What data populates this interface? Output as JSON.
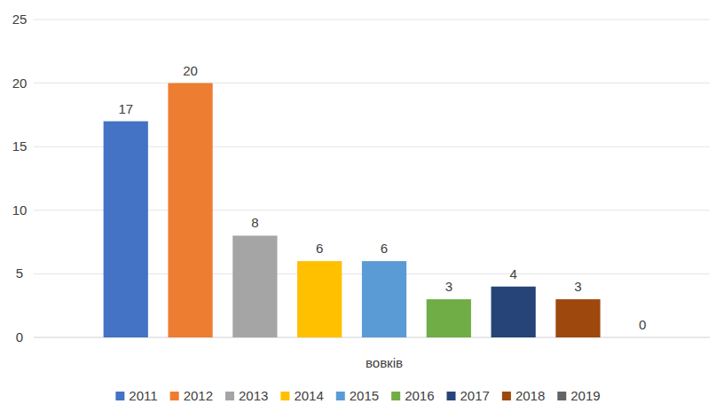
{
  "chart_data": {
    "type": "bar",
    "categories": [
      "вовків"
    ],
    "series": [
      {
        "name": "2011",
        "color": "#4472c4",
        "values": [
          17
        ]
      },
      {
        "name": "2012",
        "color": "#ed7d31",
        "values": [
          20
        ]
      },
      {
        "name": "2013",
        "color": "#a5a5a5",
        "values": [
          8
        ]
      },
      {
        "name": "2014",
        "color": "#ffc000",
        "values": [
          6
        ]
      },
      {
        "name": "2015",
        "color": "#5b9bd5",
        "values": [
          6
        ]
      },
      {
        "name": "2016",
        "color": "#70ad47",
        "values": [
          3
        ]
      },
      {
        "name": "2017",
        "color": "#264478",
        "values": [
          4
        ]
      },
      {
        "name": "2018",
        "color": "#9e480e",
        "values": [
          3
        ]
      },
      {
        "name": "2019",
        "color": "#636363",
        "values": [
          0
        ]
      }
    ],
    "ylim": [
      0,
      25
    ],
    "yticks": [
      0,
      5,
      10,
      15,
      20,
      25
    ],
    "grid": true,
    "data_labels": true,
    "legend": "bottom"
  }
}
